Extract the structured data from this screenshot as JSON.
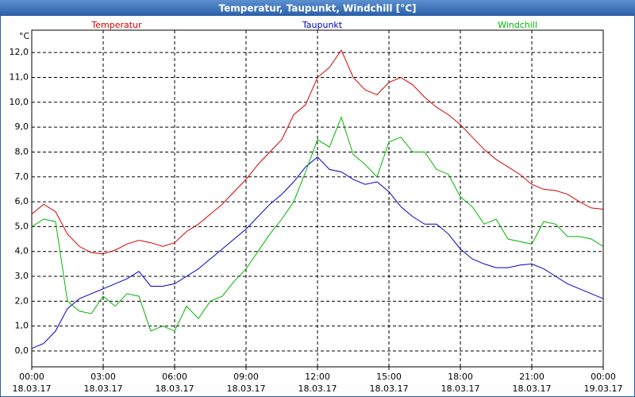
{
  "chart_data": {
    "type": "line",
    "title": "Temperatur, Taupunkt, Windchill [°C]",
    "y_unit": "°C",
    "x": [
      0,
      0.5,
      1,
      1.5,
      2,
      2.5,
      3,
      3.5,
      4,
      4.5,
      5,
      5.5,
      6,
      6.5,
      7,
      7.5,
      8,
      8.5,
      9,
      9.5,
      10,
      10.5,
      11,
      11.5,
      12,
      12.5,
      13,
      13.5,
      14,
      14.5,
      15,
      15.5,
      16,
      16.5,
      17,
      17.5,
      18,
      18.5,
      19,
      19.5,
      20,
      20.5,
      21,
      21.5,
      22,
      22.5,
      23,
      23.5,
      24
    ],
    "series": [
      {
        "name": "Temperatur",
        "color": "#d40000",
        "values": [
          5.5,
          5.9,
          5.6,
          4.7,
          4.2,
          3.95,
          3.9,
          4.05,
          4.3,
          4.45,
          4.35,
          4.2,
          4.35,
          4.8,
          5.1,
          5.5,
          5.9,
          6.4,
          6.9,
          7.5,
          8.0,
          8.5,
          9.5,
          9.9,
          11.0,
          11.4,
          12.1,
          11.0,
          10.5,
          10.3,
          10.8,
          11.0,
          10.7,
          10.2,
          9.8,
          9.5,
          9.1,
          8.6,
          8.1,
          7.7,
          7.4,
          7.1,
          6.7,
          6.5,
          6.45,
          6.3,
          6.0,
          5.75,
          5.7
        ]
      },
      {
        "name": "Taupunkt",
        "color": "#0000c8",
        "values": [
          0.1,
          0.3,
          0.8,
          1.7,
          2.1,
          2.3,
          2.5,
          2.7,
          2.9,
          3.2,
          2.6,
          2.6,
          2.7,
          3.0,
          3.3,
          3.7,
          4.1,
          4.5,
          4.9,
          5.4,
          5.9,
          6.3,
          6.8,
          7.4,
          7.8,
          7.3,
          7.2,
          6.9,
          6.7,
          6.8,
          6.4,
          5.8,
          5.4,
          5.1,
          5.1,
          4.7,
          4.1,
          3.7,
          3.5,
          3.35,
          3.35,
          3.45,
          3.5,
          3.3,
          3.0,
          2.7,
          2.5,
          2.3,
          2.1
        ]
      },
      {
        "name": "Windchill",
        "color": "#00b400",
        "values": [
          5.0,
          5.3,
          5.2,
          2.0,
          1.6,
          1.5,
          2.2,
          1.8,
          2.3,
          2.2,
          0.8,
          1.0,
          0.8,
          1.8,
          1.3,
          2.0,
          2.2,
          2.8,
          3.3,
          4.0,
          4.7,
          5.3,
          6.0,
          7.2,
          8.5,
          8.2,
          9.4,
          7.9,
          7.5,
          7.0,
          8.4,
          8.6,
          8.0,
          8.0,
          7.3,
          7.1,
          6.2,
          5.8,
          5.1,
          5.3,
          4.5,
          4.4,
          4.3,
          5.2,
          5.1,
          4.6,
          4.6,
          4.5,
          4.2
        ]
      }
    ],
    "xlim": [
      0,
      24
    ],
    "xticks": [
      {
        "value": 0,
        "label": "00:00"
      },
      {
        "value": 3,
        "label": "03:00"
      },
      {
        "value": 6,
        "label": "06:00"
      },
      {
        "value": 9,
        "label": "09:00"
      },
      {
        "value": 12,
        "label": "12:00"
      },
      {
        "value": 15,
        "label": "15:00"
      },
      {
        "value": 18,
        "label": "18:00"
      },
      {
        "value": 21,
        "label": "21:00"
      },
      {
        "value": 24,
        "label": "00:00"
      }
    ],
    "xtick_dates": [
      "18.03.17",
      "18.03.17",
      "18.03.17",
      "18.03.17",
      "18.03.17",
      "18.03.17",
      "18.03.17",
      "18.03.17",
      "19.03.17"
    ],
    "ylim": [
      -0.64,
      12.9
    ],
    "yticks": [
      {
        "value": 0,
        "label": "0,0"
      },
      {
        "value": 1,
        "label": "1,0"
      },
      {
        "value": 2,
        "label": "2,0"
      },
      {
        "value": 3,
        "label": "3,0"
      },
      {
        "value": 4,
        "label": "4,0"
      },
      {
        "value": 5,
        "label": "5,0"
      },
      {
        "value": 6,
        "label": "6,0"
      },
      {
        "value": 7,
        "label": "7,0"
      },
      {
        "value": 8,
        "label": "8,0"
      },
      {
        "value": 9,
        "label": "9,0"
      },
      {
        "value": 10,
        "label": "10,0"
      },
      {
        "value": 11,
        "label": "11,0"
      },
      {
        "value": 12,
        "label": "12,0"
      }
    ],
    "grid": true
  }
}
